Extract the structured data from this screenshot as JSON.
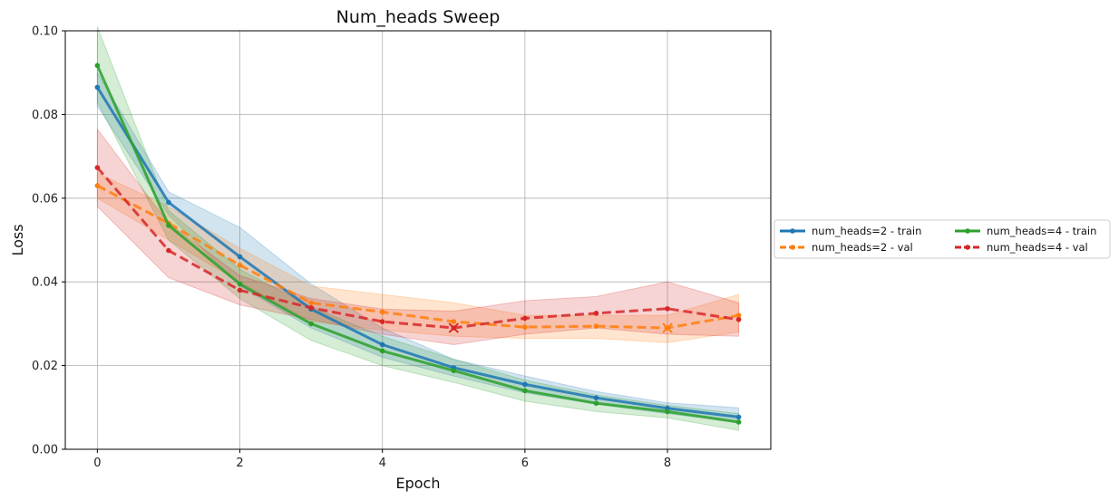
{
  "chart_data": {
    "type": "line",
    "title": "Num_heads Sweep",
    "xlabel": "Epoch",
    "ylabel": "Loss",
    "xlim": [
      -0.45,
      9.45
    ],
    "ylim": [
      0.0,
      0.1
    ],
    "xticks": [
      0,
      2,
      4,
      6,
      8
    ],
    "yticks": [
      0.0,
      0.02,
      0.04,
      0.06,
      0.08,
      0.1
    ],
    "ytick_labels": [
      "0.00",
      "0.02",
      "0.04",
      "0.06",
      "0.08",
      "0.10"
    ],
    "grid": true,
    "legend_position": "right-outside",
    "x": [
      0,
      1,
      2,
      3,
      4,
      5,
      6,
      7,
      8,
      9
    ],
    "series": [
      {
        "name": "num_heads=2 - train",
        "color": "#1f77b4",
        "dash": "solid",
        "values": [
          0.0865,
          0.059,
          0.046,
          0.0335,
          0.025,
          0.0195,
          0.0155,
          0.0123,
          0.0098,
          0.0077
        ],
        "lower": [
          0.082,
          0.056,
          0.039,
          0.029,
          0.022,
          0.0175,
          0.0135,
          0.0108,
          0.0085,
          0.0065
        ],
        "upper": [
          0.09,
          0.0615,
          0.053,
          0.0395,
          0.029,
          0.0215,
          0.0175,
          0.0138,
          0.0111,
          0.0099
        ],
        "best_marker": null
      },
      {
        "name": "num_heads=2 - val",
        "color": "#ff7f0e",
        "dash": "dashed",
        "values": [
          0.063,
          0.054,
          0.044,
          0.035,
          0.0328,
          0.0305,
          0.0292,
          0.0294,
          0.029,
          0.032
        ],
        "lower": [
          0.06,
          0.05,
          0.04,
          0.0305,
          0.0285,
          0.027,
          0.0265,
          0.0265,
          0.0255,
          0.028
        ],
        "upper": [
          0.066,
          0.058,
          0.048,
          0.039,
          0.037,
          0.035,
          0.032,
          0.032,
          0.032,
          0.037
        ],
        "best_marker": {
          "x": 8,
          "y": 0.029
        }
      },
      {
        "name": "num_heads=4 - train",
        "color": "#2ca02c",
        "dash": "solid",
        "values": [
          0.0917,
          0.0535,
          0.0395,
          0.03,
          0.0235,
          0.0188,
          0.014,
          0.011,
          0.009,
          0.0065
        ],
        "lower": [
          0.083,
          0.05,
          0.036,
          0.026,
          0.02,
          0.016,
          0.0115,
          0.009,
          0.0075,
          0.0045
        ],
        "upper": [
          0.101,
          0.057,
          0.043,
          0.034,
          0.027,
          0.0215,
          0.0165,
          0.013,
          0.0105,
          0.0085
        ],
        "best_marker": null
      },
      {
        "name": "num_heads=4 - val",
        "color": "#d62728",
        "dash": "dashed",
        "values": [
          0.0673,
          0.0475,
          0.038,
          0.0338,
          0.0305,
          0.029,
          0.0313,
          0.0325,
          0.0336,
          0.031
        ],
        "lower": [
          0.058,
          0.041,
          0.0345,
          0.031,
          0.0275,
          0.025,
          0.0275,
          0.029,
          0.0275,
          0.027
        ],
        "upper": [
          0.0765,
          0.054,
          0.0415,
          0.036,
          0.0335,
          0.033,
          0.0355,
          0.0365,
          0.04,
          0.035
        ],
        "best_marker": {
          "x": 5,
          "y": 0.029
        }
      }
    ]
  }
}
